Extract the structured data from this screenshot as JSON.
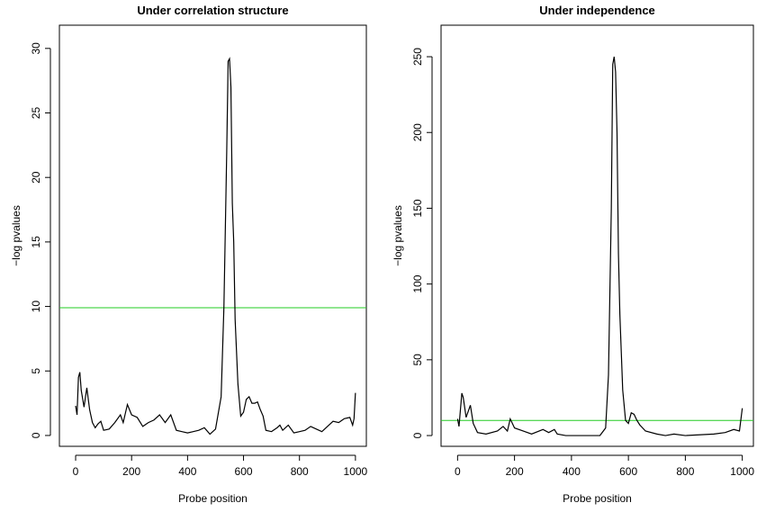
{
  "chart_data": [
    {
      "type": "line",
      "title": "Under correlation structure",
      "x_label": "Probe position",
      "y_label": "−log pvalues",
      "xlim": [
        -58,
        1039
      ],
      "ylim": [
        -0.84,
        31.8
      ],
      "xticks": [
        0,
        200,
        400,
        600,
        800,
        1000
      ],
      "yticks": [
        0,
        5,
        10,
        15,
        20,
        25,
        30
      ],
      "hline": 9.9,
      "hline_color": "#22cc22",
      "series": [
        {
          "color": "#000000",
          "x": [
            0,
            5,
            10,
            15,
            20,
            30,
            40,
            50,
            60,
            70,
            80,
            90,
            100,
            120,
            140,
            160,
            170,
            185,
            200,
            220,
            240,
            260,
            280,
            300,
            320,
            340,
            360,
            380,
            400,
            420,
            440,
            460,
            480,
            500,
            520,
            530,
            540,
            545,
            550,
            555,
            560,
            565,
            570,
            580,
            590,
            600,
            610,
            620,
            630,
            640,
            650,
            660,
            670,
            680,
            700,
            720,
            730,
            740,
            760,
            780,
            800,
            820,
            840,
            860,
            880,
            900,
            920,
            940,
            960,
            980,
            990,
            995,
            1000
          ],
          "values": [
            2.3,
            1.6,
            4.5,
            4.9,
            3.5,
            2.2,
            3.7,
            2.0,
            1.0,
            0.6,
            0.9,
            1.1,
            0.4,
            0.5,
            1.0,
            1.6,
            1.0,
            2.4,
            1.6,
            1.4,
            0.7,
            1.0,
            1.2,
            1.6,
            1.0,
            1.6,
            0.4,
            0.3,
            0.2,
            0.3,
            0.4,
            0.6,
            0.1,
            0.5,
            3,
            10,
            22,
            29,
            29.2,
            27,
            18,
            15,
            9,
            4,
            1.5,
            1.8,
            2.8,
            3,
            2.5,
            2.5,
            2.6,
            2.0,
            1.5,
            0.4,
            0.3,
            0.6,
            0.8,
            0.4,
            0.8,
            0.2,
            0.3,
            0.4,
            0.7,
            0.5,
            0.3,
            0.7,
            1.1,
            1.0,
            1.3,
            1.4,
            0.8,
            1.3,
            3.3
          ]
        }
      ]
    },
    {
      "type": "line",
      "title": "Under independence",
      "x_label": "Probe position",
      "y_label": "−log pvalues",
      "xlim": [
        -58,
        1039
      ],
      "ylim": [
        -7.1,
        270.8
      ],
      "xticks": [
        0,
        200,
        400,
        600,
        800,
        1000
      ],
      "yticks": [
        0,
        50,
        100,
        150,
        200,
        250
      ],
      "hline": 10,
      "hline_color": "#22cc22",
      "series": [
        {
          "color": "#000000",
          "x": [
            0,
            5,
            15,
            20,
            30,
            45,
            55,
            70,
            100,
            140,
            160,
            175,
            185,
            200,
            230,
            260,
            300,
            320,
            340,
            350,
            380,
            400,
            450,
            500,
            520,
            530,
            540,
            545,
            550,
            555,
            560,
            565,
            570,
            580,
            590,
            600,
            610,
            620,
            630,
            640,
            660,
            700,
            730,
            760,
            800,
            900,
            940,
            970,
            990,
            1000
          ],
          "values": [
            11,
            6,
            28,
            25,
            12,
            20,
            8,
            2,
            1,
            3,
            6,
            3,
            11,
            5,
            3,
            1,
            4,
            2,
            4,
            1,
            0,
            0,
            0,
            0,
            5,
            40,
            150,
            245,
            250,
            240,
            200,
            120,
            80,
            30,
            10,
            8,
            15,
            14,
            10,
            7,
            3,
            1,
            0,
            1,
            0,
            1,
            2,
            4,
            3,
            18
          ]
        }
      ]
    }
  ]
}
